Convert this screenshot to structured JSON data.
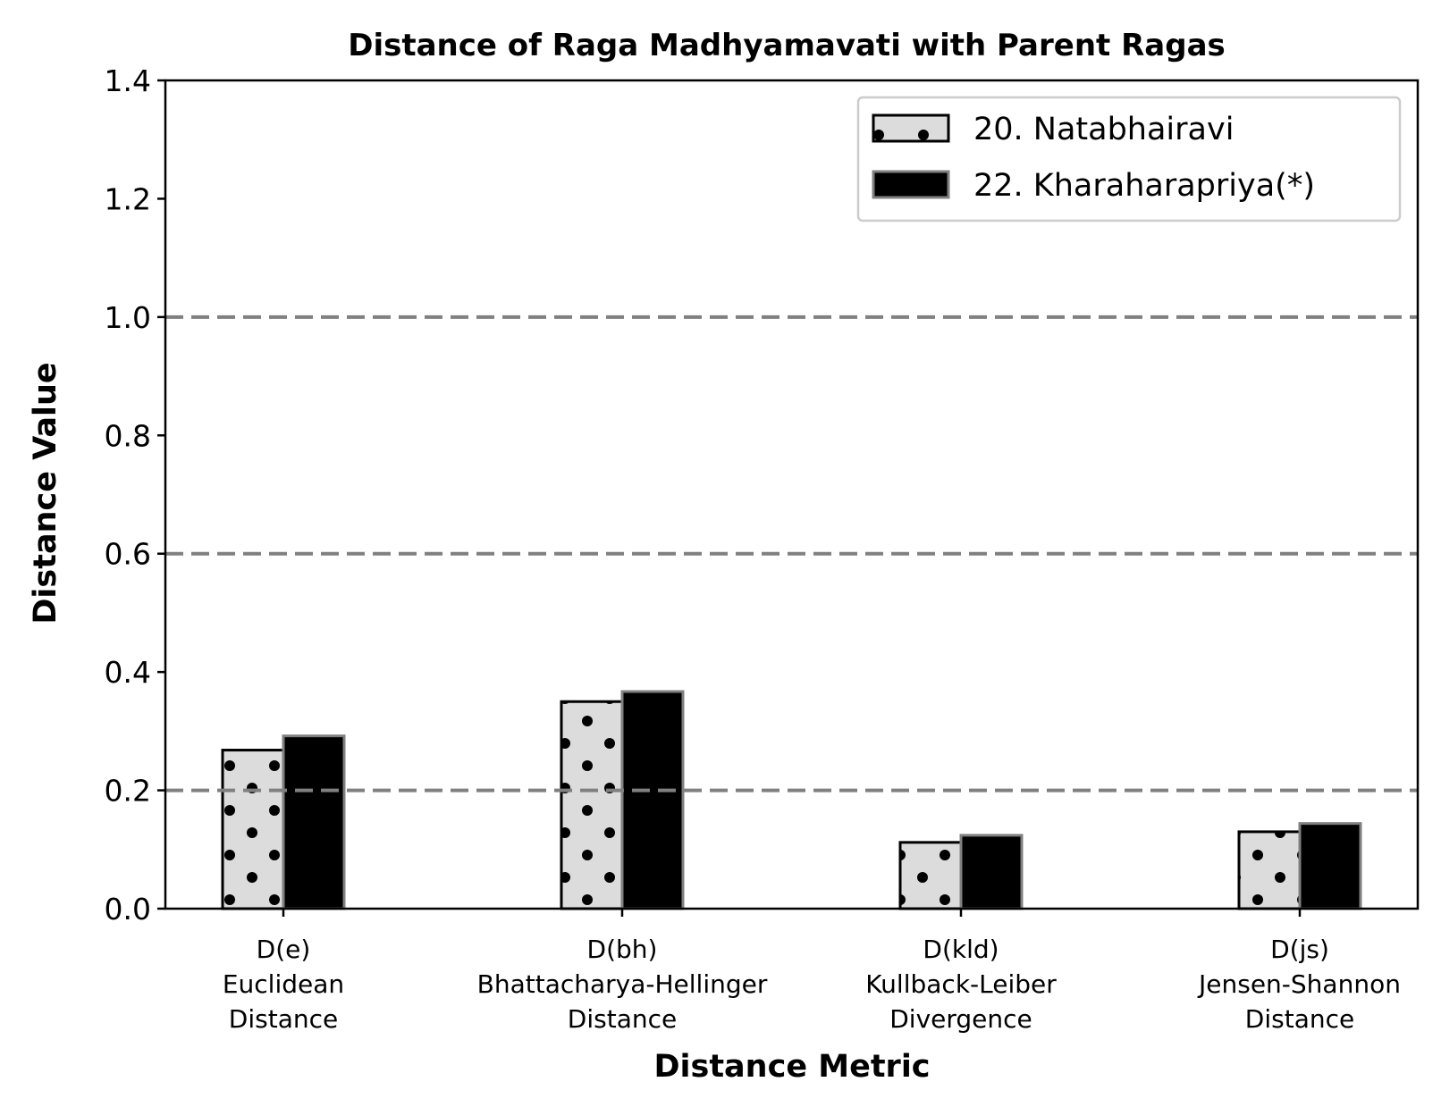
{
  "chart_data": {
    "type": "bar",
    "title": "Distance of Raga Madhyamavati with Parent Ragas",
    "xlabel": "Distance Metric",
    "ylabel": "Distance Value",
    "ylim": [
      0,
      1.4
    ],
    "yticks": [
      "0.0",
      "0.2",
      "0.4",
      "0.6",
      "0.8",
      "1.0",
      "1.2",
      "1.4"
    ],
    "categories": [
      [
        "D(e)",
        "Euclidean",
        "Distance"
      ],
      [
        "D(bh)",
        "Bhattacharya-Hellinger",
        "Distance"
      ],
      [
        "D(kld)",
        "Kullback-Leiber",
        "Divergence"
      ],
      [
        "D(js)",
        "Jensen-Shannon",
        "Distance"
      ]
    ],
    "series": [
      {
        "name": "20. Natabhairavi",
        "values": [
          0.268,
          0.35,
          0.112,
          0.13
        ],
        "fill": "#dcdcdc",
        "edge": "#000000",
        "hatch": "dots"
      },
      {
        "name": "22. Kharaharapriya(*)",
        "values": [
          0.292,
          0.367,
          0.124,
          0.144
        ],
        "fill": "#000000",
        "edge": "#808080",
        "hatch": "none"
      }
    ],
    "reference_lines": [
      0.2,
      0.6,
      1.0
    ],
    "reference_line_color": "#808080",
    "grid": false,
    "legend_position": "upper-right"
  }
}
